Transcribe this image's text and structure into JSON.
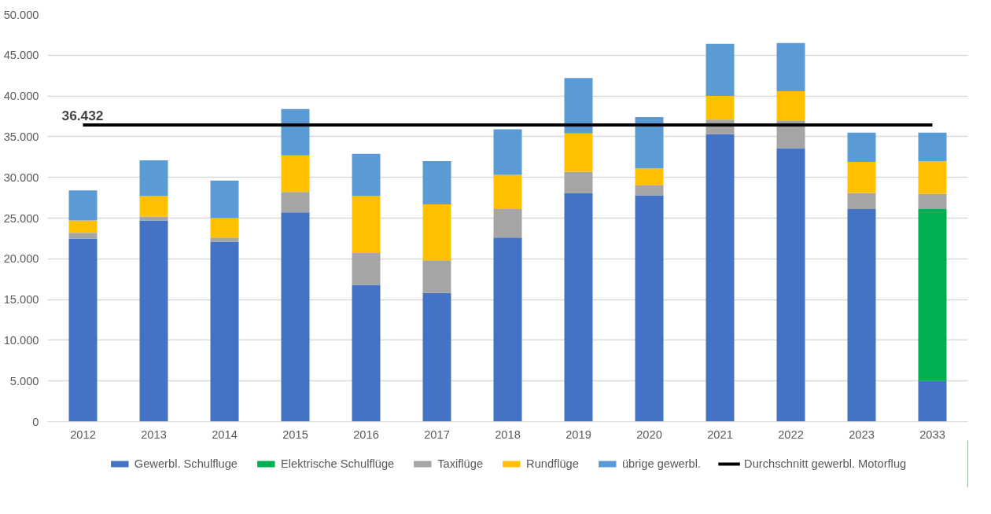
{
  "chart_data": {
    "type": "bar",
    "stacked": true,
    "categories": [
      "2012",
      "2013",
      "2014",
      "2015",
      "2016",
      "2017",
      "2018",
      "2019",
      "2020",
      "2021",
      "2022",
      "2023",
      "2033"
    ],
    "series": [
      {
        "name": "Gewerbl. Schulfluge",
        "color": "#4472c4",
        "values": [
          22500,
          24700,
          22100,
          25700,
          16800,
          15800,
          22600,
          28100,
          27800,
          35300,
          33600,
          26100,
          5000
        ]
      },
      {
        "name": "Elektrische Schulflüge",
        "color": "#00b050",
        "values": [
          null,
          null,
          null,
          null,
          null,
          null,
          null,
          null,
          null,
          null,
          null,
          null,
          21100
        ]
      },
      {
        "name": "Taxiflüge",
        "color": "#a5a5a5",
        "values": [
          700,
          500,
          500,
          2500,
          3900,
          4000,
          3500,
          2600,
          1200,
          1800,
          3400,
          2000,
          1900
        ]
      },
      {
        "name": "Rundflüge",
        "color": "#ffc000",
        "values": [
          1500,
          2500,
          2400,
          4500,
          7000,
          6900,
          4200,
          4700,
          2100,
          2900,
          3600,
          3800,
          4000
        ]
      },
      {
        "name": "übrige gewerbl.",
        "color": "#5b9bd5",
        "values": [
          3700,
          4400,
          4600,
          5700,
          5200,
          5300,
          5600,
          6800,
          6300,
          6400,
          5900,
          3600,
          3500
        ]
      },
      {
        "name": "Durchschnitt gewerbl. Motorflug",
        "type": "line",
        "color": "#000000",
        "values": [
          36432,
          36432,
          36432,
          36432,
          36432,
          36432,
          36432,
          36432,
          36432,
          36432,
          36432,
          36432,
          36432
        ]
      }
    ],
    "annotations": [
      {
        "text": "36.432",
        "x": "2012",
        "y": 36432
      }
    ],
    "ylim": [
      0,
      50000
    ],
    "yticks": [
      {
        "value": 0,
        "label": "0"
      },
      {
        "value": 5000,
        "label": "5.000"
      },
      {
        "value": 10000,
        "label": "10.000"
      },
      {
        "value": 15000,
        "label": "15.000"
      },
      {
        "value": 20000,
        "label": "20.000"
      },
      {
        "value": 25000,
        "label": "25.000"
      },
      {
        "value": 30000,
        "label": "30.000"
      },
      {
        "value": 35000,
        "label": "35.000"
      },
      {
        "value": 40000,
        "label": "40.000"
      },
      {
        "value": 45000,
        "label": "45.000"
      },
      {
        "value": 50000,
        "label": "50.000"
      }
    ],
    "grid": "y",
    "legend": "bottom"
  }
}
